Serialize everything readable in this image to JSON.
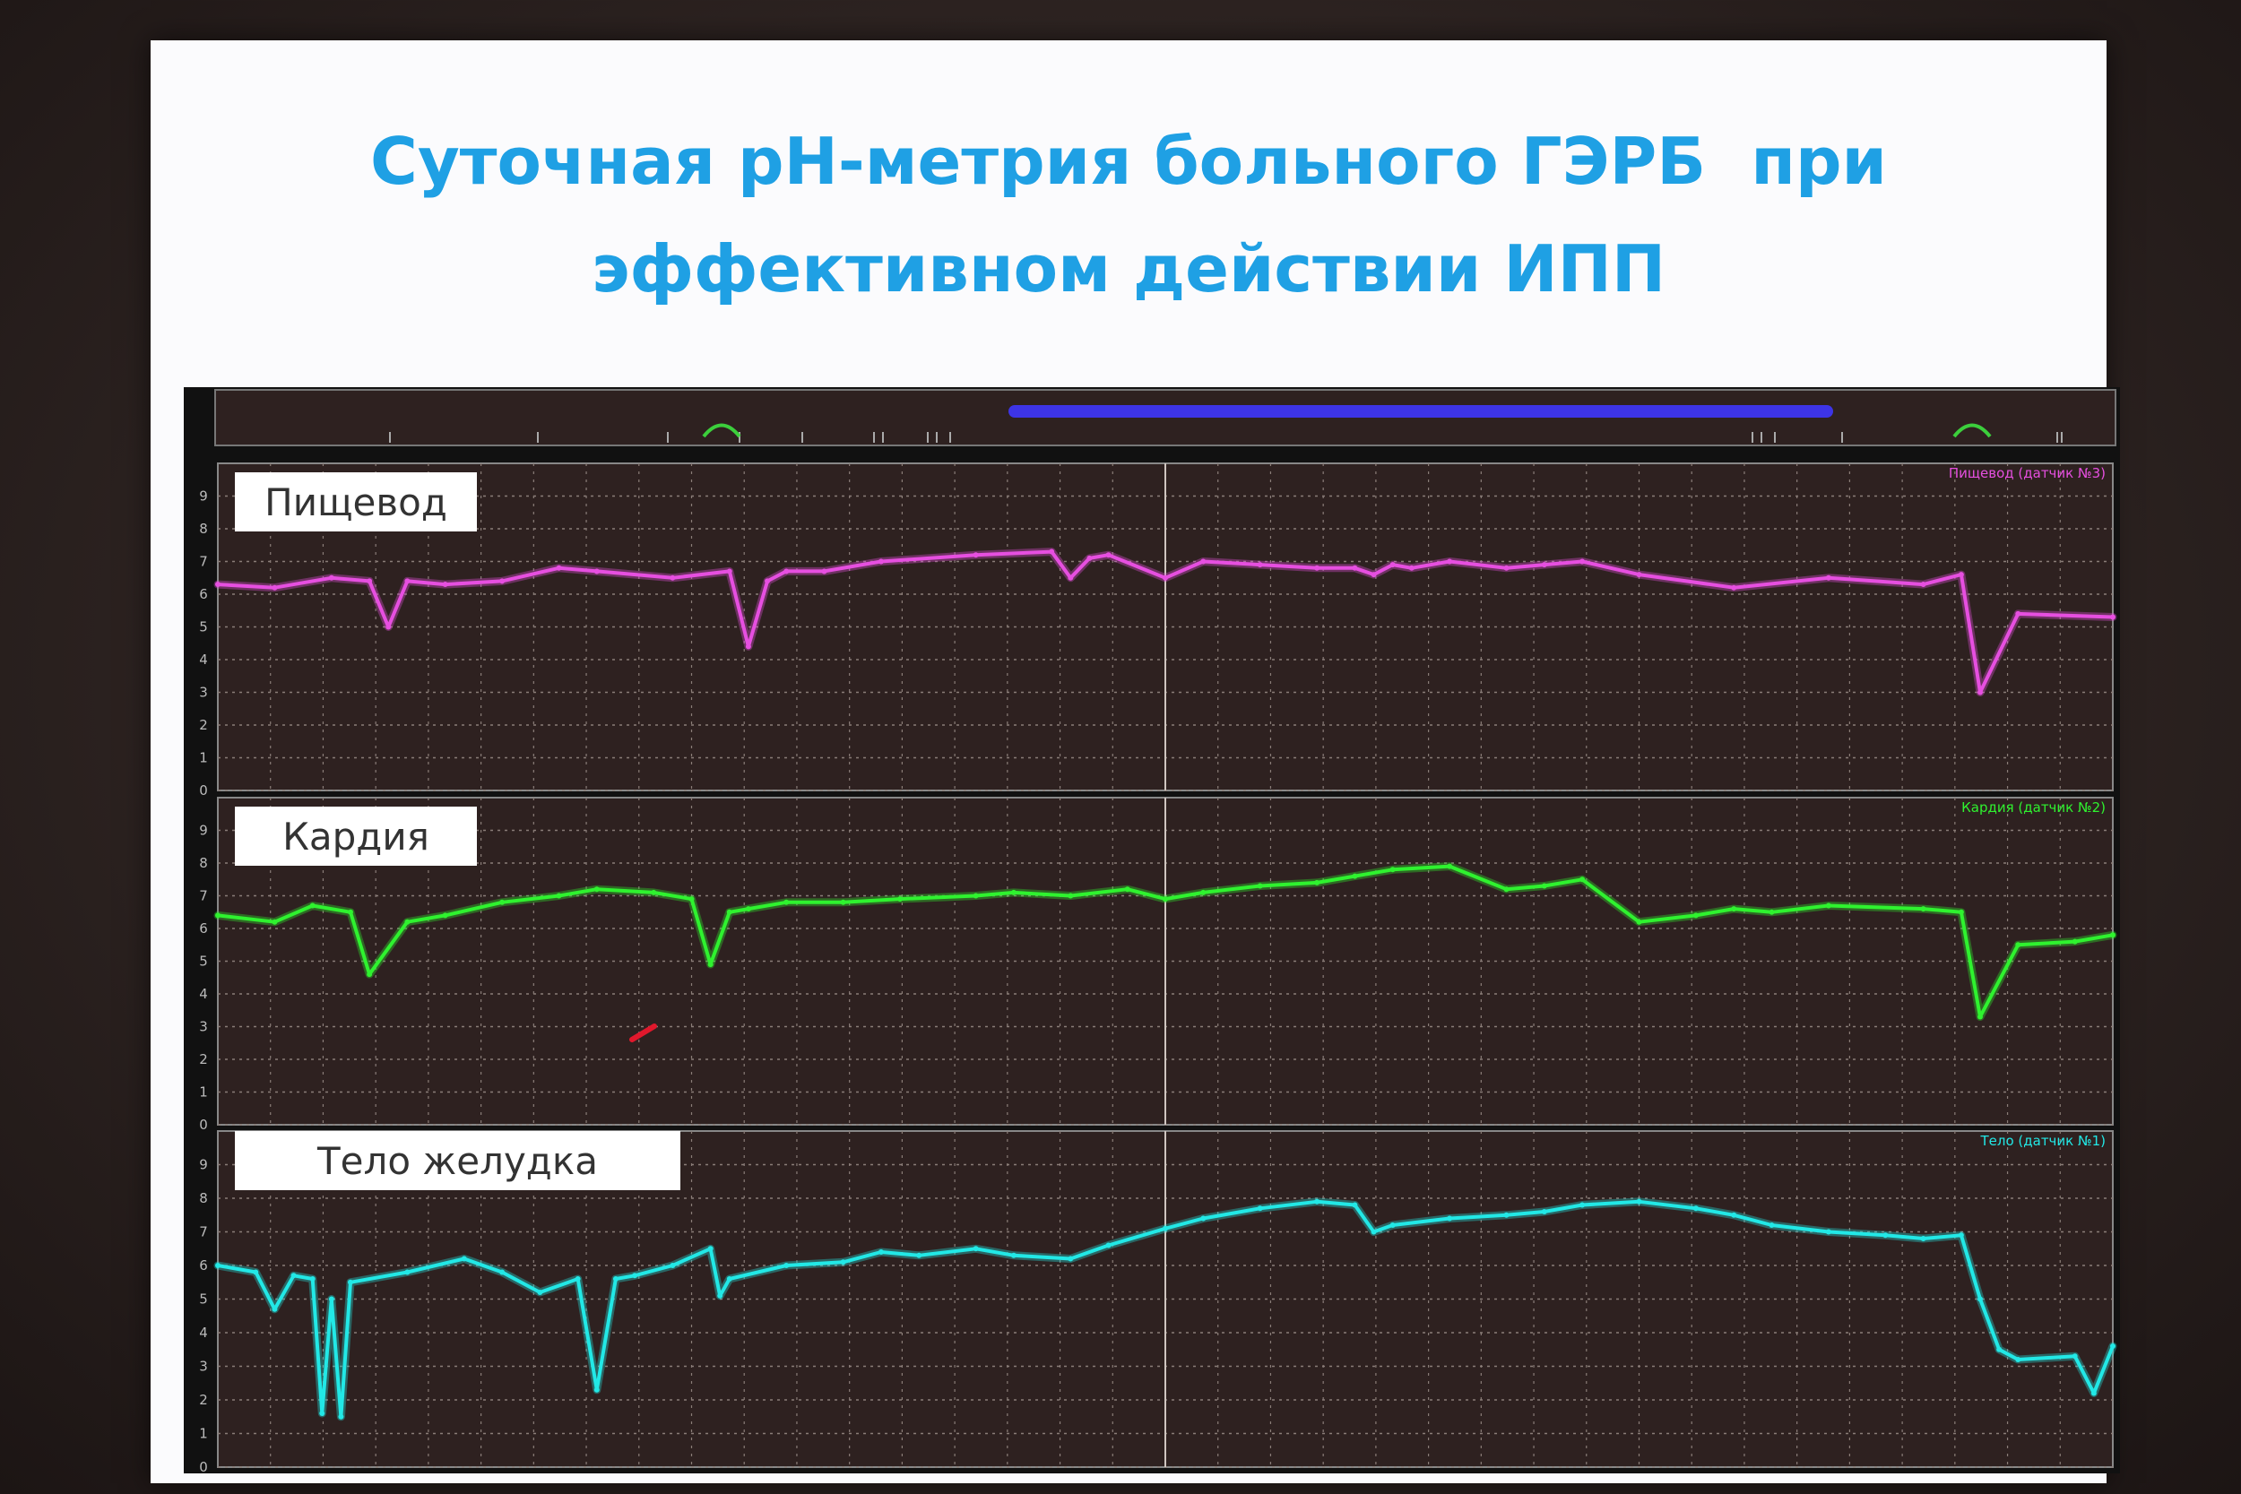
{
  "slide": {
    "title_line1": "Суточная рН-метрия больного ГЭРБ  при",
    "title_line2": "эффективном действии ИПП"
  },
  "chart_data": [
    {
      "type": "line",
      "label": "Пищевод",
      "legend": "Пищевод (датчик №3)",
      "color": "#e64fe0",
      "ylim": [
        0,
        10
      ],
      "yticks": [
        0,
        1,
        2,
        3,
        4,
        5,
        6,
        7,
        8,
        9
      ],
      "xlim": [
        0,
        100
      ],
      "x": [
        0,
        3,
        6,
        8,
        9,
        10,
        12,
        15,
        18,
        20,
        24,
        27,
        28,
        29,
        30,
        32,
        35,
        40,
        44,
        45,
        46,
        47,
        50,
        52,
        55,
        58,
        60,
        61,
        62,
        63,
        65,
        68,
        70,
        72,
        75,
        80,
        85,
        90,
        92,
        93,
        95,
        100
      ],
      "values": [
        6.3,
        6.2,
        6.5,
        6.4,
        5.0,
        6.4,
        6.3,
        6.4,
        6.8,
        6.7,
        6.5,
        6.7,
        4.4,
        6.4,
        6.7,
        6.7,
        7.0,
        7.2,
        7.3,
        6.5,
        7.1,
        7.2,
        6.5,
        7.0,
        6.9,
        6.8,
        6.8,
        6.6,
        6.9,
        6.8,
        7.0,
        6.8,
        6.9,
        7.0,
        6.6,
        6.2,
        6.5,
        6.3,
        6.6,
        3.0,
        5.4,
        5.3
      ]
    },
    {
      "type": "line",
      "label": "Кардия",
      "legend": "Кардия (датчик №2)",
      "color": "#2ff22f",
      "ylim": [
        0,
        10
      ],
      "yticks": [
        0,
        1,
        2,
        3,
        4,
        5,
        6,
        7,
        8,
        9
      ],
      "xlim": [
        0,
        100
      ],
      "x": [
        0,
        3,
        5,
        7,
        8,
        10,
        12,
        15,
        18,
        20,
        23,
        25,
        26,
        27,
        28,
        30,
        33,
        36,
        40,
        42,
        45,
        48,
        50,
        52,
        55,
        58,
        60,
        62,
        65,
        68,
        70,
        72,
        75,
        78,
        80,
        82,
        85,
        90,
        92,
        93,
        95,
        98,
        100
      ],
      "values": [
        6.4,
        6.2,
        6.7,
        6.5,
        4.6,
        6.2,
        6.4,
        6.8,
        7.0,
        7.2,
        7.1,
        6.9,
        4.9,
        6.5,
        6.6,
        6.8,
        6.8,
        6.9,
        7.0,
        7.1,
        7.0,
        7.2,
        6.9,
        7.1,
        7.3,
        7.4,
        7.6,
        7.8,
        7.9,
        7.2,
        7.3,
        7.5,
        6.2,
        6.4,
        6.6,
        6.5,
        6.7,
        6.6,
        6.5,
        3.3,
        5.5,
        5.6,
        5.8
      ]
    },
    {
      "type": "line",
      "label": "Тело желудка",
      "legend": "Тело (датчик №1)",
      "color": "#22e8e6",
      "ylim": [
        0,
        10
      ],
      "yticks": [
        0,
        1,
        2,
        3,
        4,
        5,
        6,
        7,
        8,
        9
      ],
      "xlim": [
        0,
        100
      ],
      "x": [
        0,
        2,
        3,
        4,
        5,
        5.5,
        6,
        6.5,
        7,
        10,
        13,
        15,
        17,
        19,
        20,
        21,
        22,
        24,
        26,
        26.5,
        27,
        30,
        33,
        35,
        37,
        40,
        42,
        45,
        47,
        50,
        52,
        55,
        58,
        60,
        61,
        62,
        65,
        68,
        70,
        72,
        75,
        78,
        80,
        82,
        85,
        88,
        90,
        92,
        93,
        94,
        95,
        98,
        99,
        100
      ],
      "values": [
        6.0,
        5.8,
        4.7,
        5.7,
        5.6,
        1.6,
        5.0,
        1.5,
        5.5,
        5.8,
        6.2,
        5.8,
        5.2,
        5.6,
        2.3,
        5.6,
        5.7,
        6.0,
        6.5,
        5.1,
        5.6,
        6.0,
        6.1,
        6.4,
        6.3,
        6.5,
        6.3,
        6.2,
        6.6,
        7.1,
        7.4,
        7.7,
        7.9,
        7.8,
        7.0,
        7.2,
        7.4,
        7.5,
        7.6,
        7.8,
        7.9,
        7.7,
        7.5,
        7.2,
        7.0,
        6.9,
        6.8,
        6.9,
        5.0,
        3.5,
        3.2,
        3.3,
        2.2,
        3.6
      ]
    }
  ]
}
